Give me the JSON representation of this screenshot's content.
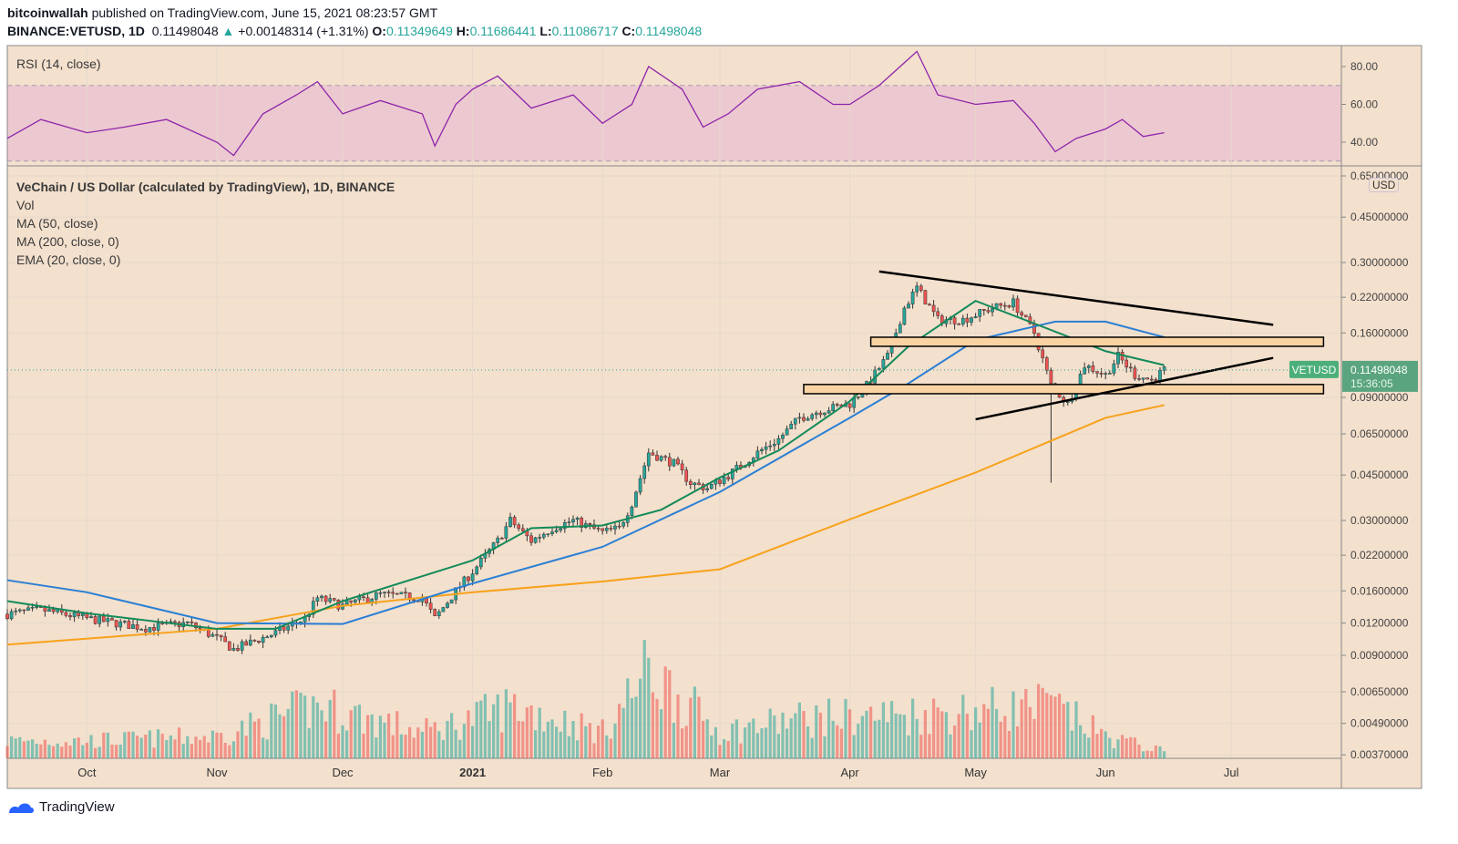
{
  "header": {
    "publisher": "bitcoinwallah",
    "published_text": "published on TradingView.com, June 15, 2021 08:23:57 GMT",
    "symbol": "BINANCE:VETUSD, 1D",
    "last": "0.11498048",
    "change": "+0.00148314 (+1.31%)",
    "o_label": "O:",
    "o": "0.11349649",
    "h_label": "H:",
    "h": "0.11686441",
    "l_label": "L:",
    "l": "0.11086717",
    "c_label": "C:",
    "c": "0.11498048"
  },
  "rsi": {
    "label": "RSI (14, close)",
    "ticks": [
      "80.00",
      "60.00",
      "40.00"
    ],
    "band": [
      30,
      70
    ]
  },
  "legend": {
    "title": "VeChain / US Dollar (calculated by TradingView), 1D, BINANCE",
    "vol": "Vol",
    "ma50": "MA (50, close)",
    "ma200": "MA (200, close, 0)",
    "ema20": "EMA (20, close, 0)"
  },
  "price_axis": {
    "currency": "USD",
    "ticks": [
      "0.65000000",
      "0.45000000",
      "0.30000000",
      "0.22000000",
      "0.16000000",
      "0.09000000",
      "0.06500000",
      "0.04500000",
      "0.03000000",
      "0.02200000",
      "0.01600000",
      "0.01200000",
      "0.00900000",
      "0.00650000",
      "0.00490000",
      "0.00370000"
    ],
    "scale": "log"
  },
  "last_label": {
    "symbol": "VETUSD",
    "price": "0.11498048",
    "countdown": "15:36:05"
  },
  "time_axis": [
    {
      "label": "Oct",
      "date": "2020-10-01"
    },
    {
      "label": "Nov",
      "date": "2020-11-01"
    },
    {
      "label": "Dec",
      "date": "2020-12-01"
    },
    {
      "label": "2021",
      "date": "2021-01-01",
      "bold": true
    },
    {
      "label": "Feb",
      "date": "2021-02-01"
    },
    {
      "label": "Mar",
      "date": "2021-03-01"
    },
    {
      "label": "Apr",
      "date": "2021-04-01"
    },
    {
      "label": "May",
      "date": "2021-05-01"
    },
    {
      "label": "Jun",
      "date": "2021-06-01"
    },
    {
      "label": "Jul",
      "date": "2021-07-01"
    }
  ],
  "colors": {
    "background": "#f3e0cd",
    "up": "#26a69a",
    "down": "#ef5350",
    "ma50": "#2a7fd4",
    "ma200": "#f7a21b",
    "ema20": "#138a5a",
    "rsi": "#8e24aa",
    "rsi_band": "#ecc9d0",
    "zone": "#fbd3a3",
    "trendline": "#000000"
  },
  "footer": {
    "brand": "TradingView"
  },
  "chart_data": {
    "type": "candlestick",
    "xlim": [
      "2020-09-12",
      "2021-07-23"
    ],
    "ylim": [
      0.0037,
      0.65
    ],
    "yscale": "log",
    "closes": [
      [
        "2020-09-12",
        0.013
      ],
      [
        "2020-09-20",
        0.0135
      ],
      [
        "2020-10-01",
        0.0125
      ],
      [
        "2020-10-15",
        0.0115
      ],
      [
        "2020-10-25",
        0.012
      ],
      [
        "2020-11-01",
        0.0105
      ],
      [
        "2020-11-05",
        0.0095
      ],
      [
        "2020-11-15",
        0.011
      ],
      [
        "2020-11-22",
        0.0125
      ],
      [
        "2020-11-25",
        0.015
      ],
      [
        "2020-12-01",
        0.014
      ],
      [
        "2020-12-10",
        0.0155
      ],
      [
        "2020-12-20",
        0.015
      ],
      [
        "2020-12-23",
        0.0125
      ],
      [
        "2020-12-28",
        0.016
      ],
      [
        "2021-01-01",
        0.019
      ],
      [
        "2021-01-07",
        0.025
      ],
      [
        "2021-01-10",
        0.03
      ],
      [
        "2021-01-15",
        0.025
      ],
      [
        "2021-01-20",
        0.028
      ],
      [
        "2021-01-25",
        0.03
      ],
      [
        "2021-02-01",
        0.027
      ],
      [
        "2021-02-05",
        0.028
      ],
      [
        "2021-02-08",
        0.035
      ],
      [
        "2021-02-12",
        0.055
      ],
      [
        "2021-02-18",
        0.05
      ],
      [
        "2021-02-22",
        0.042
      ],
      [
        "2021-02-26",
        0.04
      ],
      [
        "2021-03-03",
        0.045
      ],
      [
        "2021-03-10",
        0.055
      ],
      [
        "2021-03-15",
        0.062
      ],
      [
        "2021-03-20",
        0.075
      ],
      [
        "2021-03-25",
        0.08
      ],
      [
        "2021-04-01",
        0.085
      ],
      [
        "2021-04-05",
        0.1
      ],
      [
        "2021-04-10",
        0.13
      ],
      [
        "2021-04-14",
        0.2
      ],
      [
        "2021-04-17",
        0.24
      ],
      [
        "2021-04-22",
        0.18
      ],
      [
        "2021-04-28",
        0.18
      ],
      [
        "2021-05-05",
        0.2
      ],
      [
        "2021-05-10",
        0.21
      ],
      [
        "2021-05-15",
        0.16
      ],
      [
        "2021-05-19",
        0.1
      ],
      [
        "2021-05-23",
        0.085
      ],
      [
        "2021-05-27",
        0.12
      ],
      [
        "2021-06-01",
        0.11
      ],
      [
        "2021-06-04",
        0.13
      ],
      [
        "2021-06-08",
        0.11
      ],
      [
        "2021-06-12",
        0.105
      ],
      [
        "2021-06-15",
        0.115
      ]
    ],
    "notable_wicks": [
      {
        "date": "2021-05-19",
        "low": 0.042
      }
    ],
    "ma50": [
      [
        "2020-09-12",
        0.0176
      ],
      [
        "2020-10-01",
        0.0158
      ],
      [
        "2020-11-01",
        0.012
      ],
      [
        "2020-12-01",
        0.0119
      ],
      [
        "2021-01-01",
        0.0171
      ],
      [
        "2021-02-01",
        0.0237
      ],
      [
        "2021-03-01",
        0.0387
      ],
      [
        "2021-04-01",
        0.075
      ],
      [
        "2021-04-15",
        0.102
      ],
      [
        "2021-05-01",
        0.15
      ],
      [
        "2021-05-20",
        0.177
      ],
      [
        "2021-06-01",
        0.177
      ],
      [
        "2021-06-15",
        0.154
      ]
    ],
    "ma200": [
      [
        "2020-09-12",
        0.0099
      ],
      [
        "2020-11-01",
        0.0114
      ],
      [
        "2020-12-01",
        0.014
      ],
      [
        "2021-01-01",
        0.0158
      ],
      [
        "2021-02-01",
        0.0174
      ],
      [
        "2021-03-01",
        0.0194
      ],
      [
        "2021-04-01",
        0.0303
      ],
      [
        "2021-05-01",
        0.046
      ],
      [
        "2021-06-01",
        0.075
      ],
      [
        "2021-06-15",
        0.084
      ]
    ],
    "ema20": [
      [
        "2020-09-12",
        0.0146
      ],
      [
        "2020-10-01",
        0.0131
      ],
      [
        "2020-11-01",
        0.0114
      ],
      [
        "2020-11-15",
        0.0114
      ],
      [
        "2020-12-01",
        0.0146
      ],
      [
        "2021-01-01",
        0.021
      ],
      [
        "2021-01-15",
        0.028
      ],
      [
        "2021-02-01",
        0.0287
      ],
      [
        "2021-02-15",
        0.033
      ],
      [
        "2021-03-01",
        0.044
      ],
      [
        "2021-03-15",
        0.056
      ],
      [
        "2021-04-01",
        0.087
      ],
      [
        "2021-04-15",
        0.142
      ],
      [
        "2021-05-01",
        0.213
      ],
      [
        "2021-05-15",
        0.174
      ],
      [
        "2021-06-01",
        0.136
      ],
      [
        "2021-06-15",
        0.12
      ]
    ],
    "rsi": [
      [
        "2020-09-12",
        42
      ],
      [
        "2020-09-20",
        52
      ],
      [
        "2020-10-01",
        45
      ],
      [
        "2020-10-10",
        48
      ],
      [
        "2020-10-20",
        52
      ],
      [
        "2020-11-01",
        40
      ],
      [
        "2020-11-05",
        33
      ],
      [
        "2020-11-12",
        55
      ],
      [
        "2020-11-20",
        65
      ],
      [
        "2020-11-25",
        72
      ],
      [
        "2020-12-01",
        55
      ],
      [
        "2020-12-10",
        62
      ],
      [
        "2020-12-20",
        55
      ],
      [
        "2020-12-23",
        38
      ],
      [
        "2020-12-28",
        60
      ],
      [
        "2021-01-01",
        68
      ],
      [
        "2021-01-07",
        75
      ],
      [
        "2021-01-15",
        58
      ],
      [
        "2021-01-25",
        65
      ],
      [
        "2021-02-01",
        50
      ],
      [
        "2021-02-08",
        60
      ],
      [
        "2021-02-12",
        80
      ],
      [
        "2021-02-20",
        68
      ],
      [
        "2021-02-25",
        48
      ],
      [
        "2021-03-03",
        55
      ],
      [
        "2021-03-10",
        68
      ],
      [
        "2021-03-20",
        72
      ],
      [
        "2021-03-28",
        60
      ],
      [
        "2021-04-01",
        60
      ],
      [
        "2021-04-08",
        70
      ],
      [
        "2021-04-14",
        82
      ],
      [
        "2021-04-17",
        88
      ],
      [
        "2021-04-22",
        65
      ],
      [
        "2021-05-01",
        60
      ],
      [
        "2021-05-10",
        62
      ],
      [
        "2021-05-15",
        50
      ],
      [
        "2021-05-20",
        35
      ],
      [
        "2021-05-25",
        42
      ],
      [
        "2021-06-01",
        47
      ],
      [
        "2021-06-05",
        52
      ],
      [
        "2021-06-10",
        43
      ],
      [
        "2021-06-15",
        45
      ]
    ],
    "volume_relative": [
      [
        "2020-09-12",
        0.2
      ],
      [
        "2020-10-01",
        0.2
      ],
      [
        "2020-11-01",
        0.25
      ],
      [
        "2020-11-25",
        0.6
      ],
      [
        "2020-12-20",
        0.3
      ],
      [
        "2021-01-01",
        0.45
      ],
      [
        "2021-01-10",
        0.6
      ],
      [
        "2021-02-01",
        0.3
      ],
      [
        "2021-02-12",
        1.0
      ],
      [
        "2021-03-01",
        0.3
      ],
      [
        "2021-03-20",
        0.45
      ],
      [
        "2021-04-15",
        0.5
      ],
      [
        "2021-05-19",
        0.6
      ],
      [
        "2021-06-01",
        0.25
      ],
      [
        "2021-06-15",
        0.08
      ]
    ],
    "trendlines": [
      {
        "from": [
          "2021-04-08",
          0.277
        ],
        "to": [
          "2021-07-11",
          0.172
        ]
      },
      {
        "from": [
          "2021-05-01",
          0.074
        ],
        "to": [
          "2021-07-11",
          0.128
        ]
      }
    ],
    "zones": [
      {
        "from": "2021-04-06",
        "to": "2021-07-23",
        "high": 0.154,
        "low": 0.142
      },
      {
        "from": "2021-03-21",
        "to": "2021-07-23",
        "high": 0.101,
        "low": 0.093
      }
    ]
  }
}
